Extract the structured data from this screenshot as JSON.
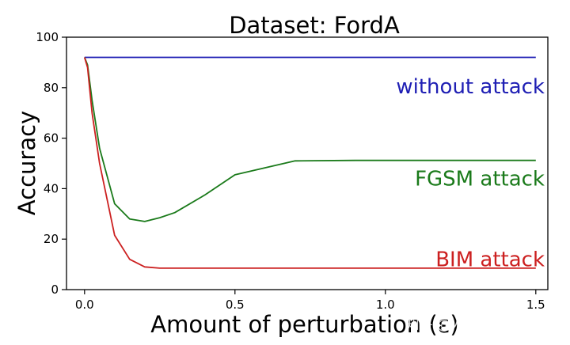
{
  "chart_data": {
    "type": "line",
    "title": "Dataset: FordA",
    "xlabel": "Amount of perturbation (ε)",
    "ylabel": "Accuracy",
    "xlim": [
      -0.06,
      1.54
    ],
    "ylim": [
      0,
      100
    ],
    "xticks": [
      0.0,
      0.5,
      1.0,
      1.5
    ],
    "xtick_labels": [
      "0.0",
      "0.5",
      "1.0",
      "1.5"
    ],
    "yticks": [
      0,
      20,
      40,
      60,
      80,
      100
    ],
    "ytick_labels": [
      "0",
      "20",
      "40",
      "60",
      "80",
      "100"
    ],
    "grid": false,
    "legend": "none",
    "series": [
      {
        "name": "without attack",
        "color": "#1f1fb4",
        "x": [
          0.0,
          1.5
        ],
        "y": [
          92,
          92
        ]
      },
      {
        "name": "FGSM attack",
        "color": "#1a7a1a",
        "x": [
          0.0,
          0.01,
          0.025,
          0.05,
          0.1,
          0.15,
          0.2,
          0.25,
          0.3,
          0.4,
          0.5,
          0.7,
          0.9,
          1.1,
          1.3,
          1.5
        ],
        "y": [
          92,
          89,
          75,
          56,
          34,
          28,
          27,
          28.5,
          30.5,
          37.5,
          45.5,
          51,
          51.2,
          51.2,
          51.2,
          51.2
        ]
      },
      {
        "name": "BIM attack",
        "color": "#cc2020",
        "x": [
          0.0,
          0.01,
          0.025,
          0.05,
          0.1,
          0.15,
          0.2,
          0.25,
          0.3,
          0.5,
          1.0,
          1.5
        ],
        "y": [
          92,
          88,
          70,
          50,
          21.5,
          12,
          9,
          8.5,
          8.5,
          8.5,
          8.5,
          8.5
        ]
      }
    ]
  },
  "watermark": "知乎 @人工智能学术前沿"
}
